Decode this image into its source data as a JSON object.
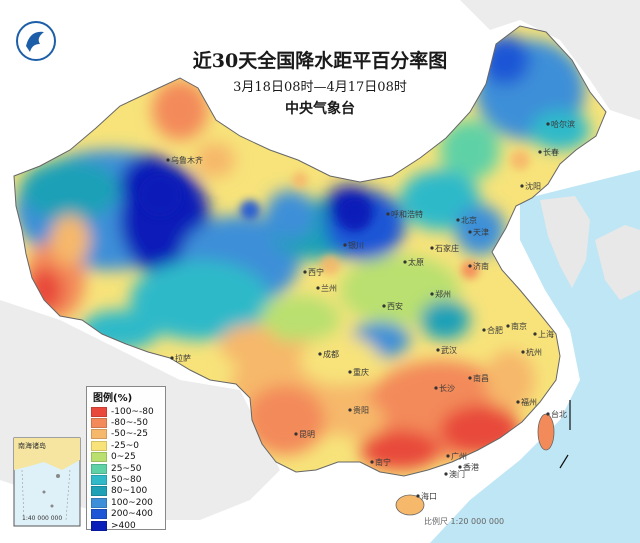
{
  "header": {
    "title": "近30天全国降水距平百分率图",
    "date_range": "3月18日08时—4月17日08时",
    "agency": "中央气象台"
  },
  "legend": {
    "title": "图例(%)",
    "items": [
      {
        "label": "-100~-80",
        "color": "#e8493a"
      },
      {
        "label": "-80~-50",
        "color": "#f38a5a"
      },
      {
        "label": "-50~-25",
        "color": "#f6b86b"
      },
      {
        "label": "-25~0",
        "color": "#f7e37a"
      },
      {
        "label": "0~25",
        "color": "#b9e06f"
      },
      {
        "label": "25~50",
        "color": "#5fd1a6"
      },
      {
        "label": "50~80",
        "color": "#2fb9c9"
      },
      {
        "label": "80~100",
        "color": "#1ea0b7"
      },
      {
        "label": "100~200",
        "color": "#3c8fd8"
      },
      {
        "label": "200~400",
        "color": "#1c57d6"
      },
      {
        "label": ">400",
        "color": "#0a1fb8"
      }
    ]
  },
  "scale": {
    "text": "比例尺 1:20 000 000"
  },
  "inset": {
    "label_sea": "南海诸岛",
    "label_scale": "1:40 000 000"
  },
  "cities": [
    {
      "name": "乌鲁木齐",
      "key": "urumqi"
    },
    {
      "name": "拉萨",
      "key": "lhasa"
    },
    {
      "name": "西宁",
      "key": "xining"
    },
    {
      "name": "兰州",
      "key": "lanzhou"
    },
    {
      "name": "银川",
      "key": "yinchuan"
    },
    {
      "name": "呼和浩特",
      "key": "hohhot"
    },
    {
      "name": "太原",
      "key": "taiyuan"
    },
    {
      "name": "石家庄",
      "key": "shijiazhuang"
    },
    {
      "name": "北京",
      "key": "beijing"
    },
    {
      "name": "天津",
      "key": "tianjin"
    },
    {
      "name": "沈阳",
      "key": "shenyang"
    },
    {
      "name": "长春",
      "key": "changchun"
    },
    {
      "name": "哈尔滨",
      "key": "harbin"
    },
    {
      "name": "济南",
      "key": "jinan"
    },
    {
      "name": "郑州",
      "key": "zhengzhou"
    },
    {
      "name": "西安",
      "key": "xian"
    },
    {
      "name": "成都",
      "key": "chengdu"
    },
    {
      "name": "重庆",
      "key": "chongqing"
    },
    {
      "name": "武汉",
      "key": "wuhan"
    },
    {
      "name": "合肥",
      "key": "hefei"
    },
    {
      "name": "南京",
      "key": "nanjing"
    },
    {
      "name": "上海",
      "key": "shanghai"
    },
    {
      "name": "杭州",
      "key": "hangzhou"
    },
    {
      "name": "南昌",
      "key": "nanchang"
    },
    {
      "name": "长沙",
      "key": "changsha"
    },
    {
      "name": "贵阳",
      "key": "guiyang"
    },
    {
      "name": "昆明",
      "key": "kunming"
    },
    {
      "name": "南宁",
      "key": "nanning"
    },
    {
      "name": "广州",
      "key": "guangzhou"
    },
    {
      "name": "福州",
      "key": "fuzhou"
    },
    {
      "name": "台北",
      "key": "taipei"
    },
    {
      "name": "香港",
      "key": "hongkong"
    },
    {
      "name": "澳门",
      "key": "macau"
    },
    {
      "name": "海口",
      "key": "haikou"
    }
  ]
}
